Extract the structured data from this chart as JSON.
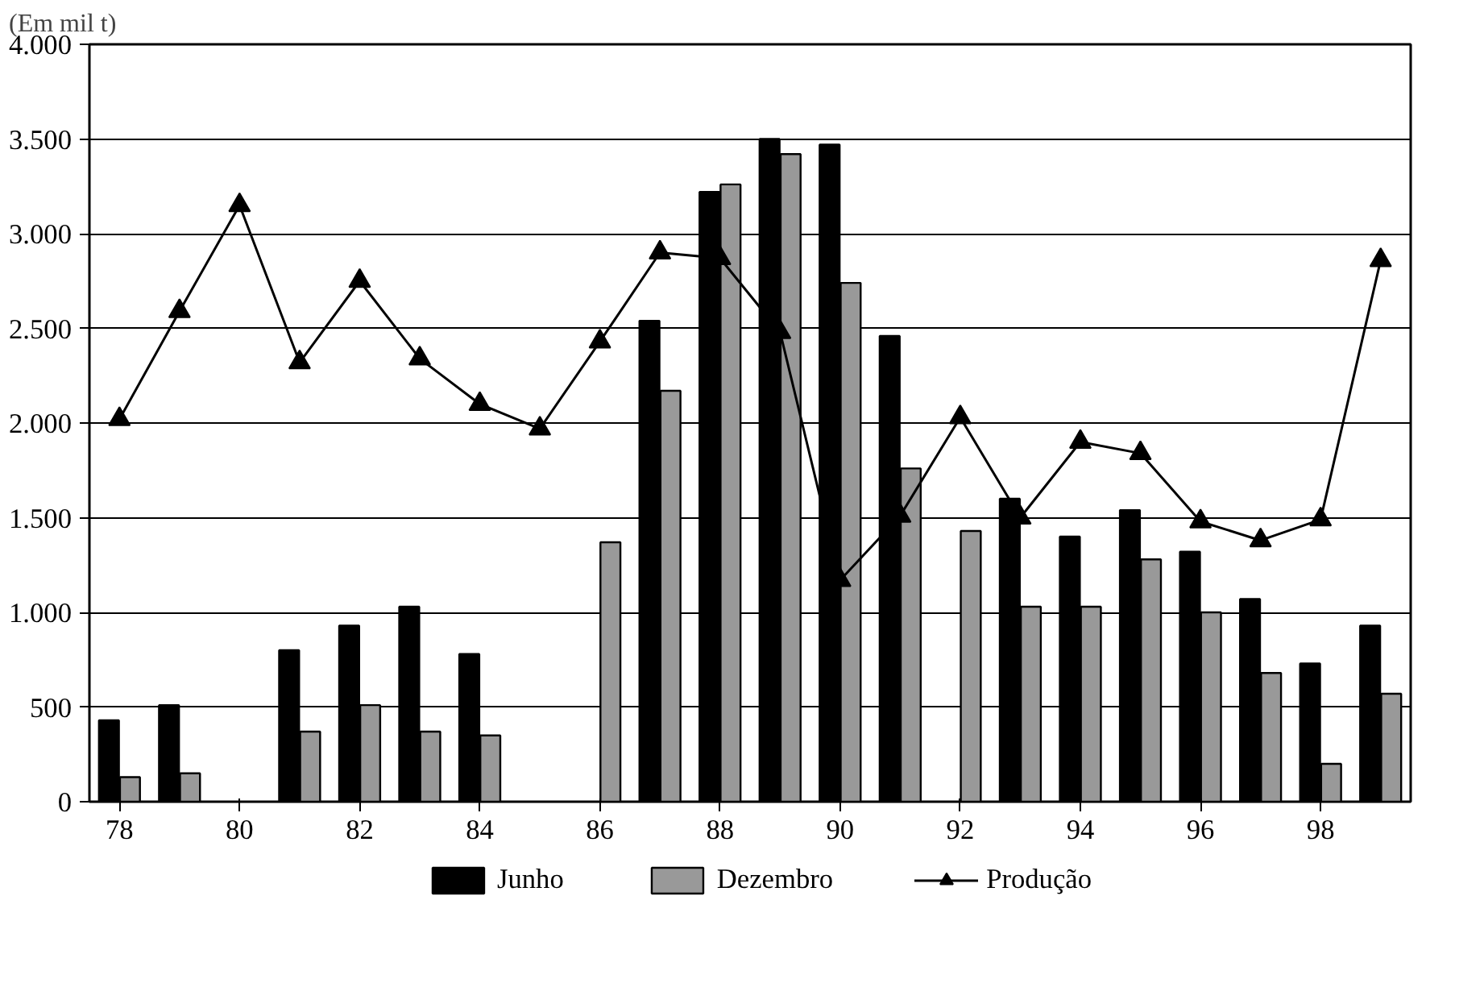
{
  "chart_data": {
    "type": "bar",
    "ylabel": "(Em mil t)",
    "categories": [
      "78",
      null,
      "80",
      null,
      "82",
      null,
      "84",
      null,
      "86",
      null,
      "88",
      null,
      "90",
      null,
      "92",
      null,
      "94",
      null,
      "96",
      null,
      "98",
      null
    ],
    "series": [
      {
        "name": "Junho",
        "color": "#000000",
        "values": [
          430,
          510,
          null,
          800,
          930,
          1030,
          780,
          null,
          null,
          2540,
          3220,
          3500,
          3470,
          2460,
          null,
          1600,
          1400,
          1540,
          1320,
          1070,
          730,
          930
        ]
      },
      {
        "name": "Dezembro",
        "color": "#999999",
        "values": [
          130,
          150,
          null,
          370,
          510,
          370,
          350,
          null,
          1370,
          2170,
          3260,
          3420,
          2740,
          1760,
          1430,
          1030,
          1030,
          1280,
          1000,
          680,
          200,
          570
        ]
      },
      {
        "name": "Produção",
        "type": "line",
        "color": "#000000",
        "marker": "triangle",
        "values": [
          2020,
          2590,
          3150,
          2320,
          2750,
          2340,
          2100,
          1970,
          2430,
          2900,
          2870,
          2480,
          1170,
          1510,
          2030,
          1500,
          1900,
          1840,
          1480,
          1380,
          1490,
          2860
        ]
      }
    ],
    "ylim": [
      0,
      4000
    ],
    "yticks": [
      0,
      {
        "value": 500,
        "label": "500"
      },
      {
        "value": 1000,
        "label": "1.000"
      },
      {
        "value": 1500,
        "label": "1.500"
      },
      {
        "value": 2000,
        "label": "2.000"
      },
      {
        "value": 2500,
        "label": "2.500"
      },
      {
        "value": 3000,
        "label": "3.000"
      },
      {
        "value": 3500,
        "label": "3.500"
      },
      {
        "value": 4000,
        "label": "4.000"
      }
    ],
    "grid": "y",
    "legend": "bottom"
  }
}
